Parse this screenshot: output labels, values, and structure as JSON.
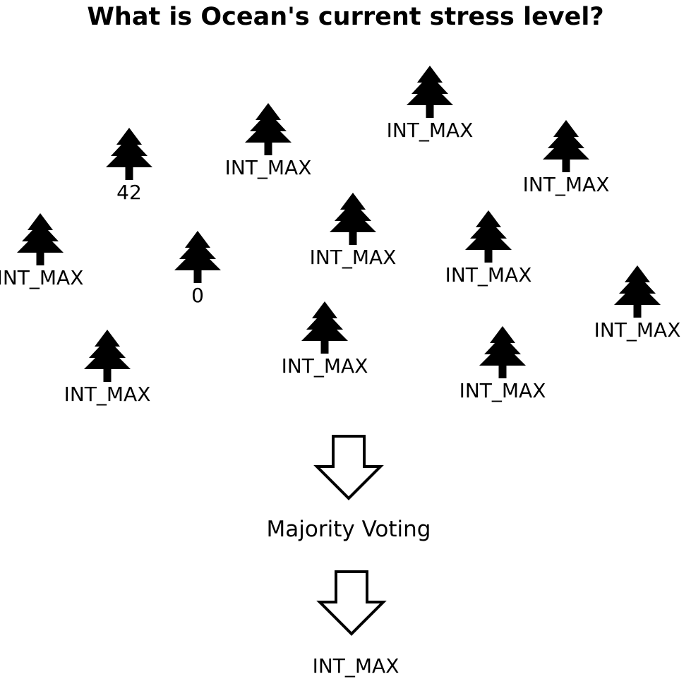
{
  "title": "What is Ocean's current stress level?",
  "trees": [
    {
      "name": "tree-1",
      "label": "42"
    },
    {
      "name": "tree-2",
      "label": "INT_MAX"
    },
    {
      "name": "tree-3",
      "label": "INT_MAX"
    },
    {
      "name": "tree-4",
      "label": "INT_MAX"
    },
    {
      "name": "tree-5",
      "label": "INT_MAX"
    },
    {
      "name": "tree-6",
      "label": "INT_MAX"
    },
    {
      "name": "tree-7",
      "label": "INT_MAX"
    },
    {
      "name": "tree-8",
      "label": "0"
    },
    {
      "name": "tree-9",
      "label": "INT_MAX"
    },
    {
      "name": "tree-10",
      "label": "INT_MAX"
    },
    {
      "name": "tree-11",
      "label": "INT_MAX"
    },
    {
      "name": "tree-12",
      "label": "INT_MAX"
    }
  ],
  "aggregation": {
    "label": "Majority Voting"
  },
  "result": {
    "label": "INT_MAX"
  }
}
